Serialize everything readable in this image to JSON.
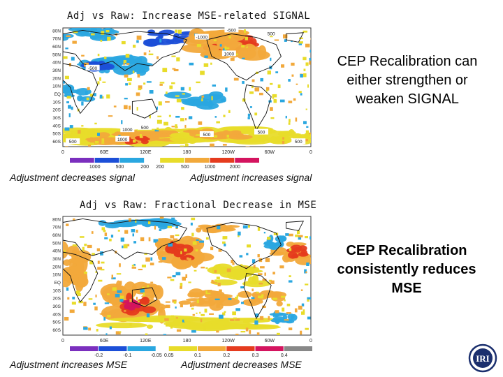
{
  "top_panel": {
    "title": "Adj vs Raw: Increase MSE-related SIGNAL",
    "lat_labels": [
      "80N",
      "70N",
      "60N",
      "50N",
      "40N",
      "30N",
      "20N",
      "10N",
      "EQ",
      "10S",
      "20S",
      "30S",
      "40S",
      "50S",
      "60S"
    ],
    "lon_labels": [
      "0",
      "60E",
      "120E",
      "180",
      "120W",
      "60W",
      "0"
    ],
    "contour_labels": [
      "-1000",
      "-500",
      "1000",
      "1000",
      "500",
      "-500",
      "500",
      "1000",
      "500",
      "500",
      "500",
      "500"
    ],
    "legend_neg": [
      "1000",
      "500",
      "200"
    ],
    "legend_pos": [
      "200",
      "500",
      "1000",
      "2000"
    ],
    "legend_colors": [
      "#7b2fbe",
      "#1c4fd8",
      "#2aa7e0",
      "#e8dc2a",
      "#f2a93b",
      "#e53b1e",
      "#d4145f"
    ],
    "caption_left": "Adjustment decreases signal",
    "caption_right": "Adjustment increases signal"
  },
  "bottom_panel": {
    "title": "Adj vs Raw: Fractional Decrease in MSE",
    "lat_labels": [
      "80N",
      "70N",
      "60N",
      "50N",
      "40N",
      "30N",
      "20N",
      "10N",
      "EQ",
      "10S",
      "20S",
      "30S",
      "40S",
      "50S",
      "60S"
    ],
    "lon_labels": [
      "0",
      "60E",
      "120E",
      "180",
      "120W",
      "60W",
      "0"
    ],
    "legend_neg": [
      "-0.2",
      "-0.1",
      "-0.05"
    ],
    "legend_pos": [
      "0.05",
      "0.1",
      "0.2",
      "0.3",
      "0.4"
    ],
    "legend_colors": [
      "#7b2fbe",
      "#1c4fd8",
      "#2aa7e0",
      "#e8dc2a",
      "#f2a93b",
      "#e53b1e",
      "#d4145f",
      "#888888"
    ],
    "caption_left": "Adjustment increases MSE",
    "caption_right": "Adjustment decreases MSE"
  },
  "callout_top": "CEP Recalibration can either strengthen or weaken SIGNAL",
  "callout_bottom": "CEP Recalibration consistently reduces MSE",
  "logo_text": "IRI",
  "colors": {
    "yellow": "#e8dc2a",
    "orange": "#f2a93b",
    "red": "#e53b1e",
    "magenta": "#d4145f",
    "cyan": "#2aa7e0",
    "blue": "#1c4fd8",
    "purple": "#7b2fbe",
    "gray": "#888888"
  }
}
